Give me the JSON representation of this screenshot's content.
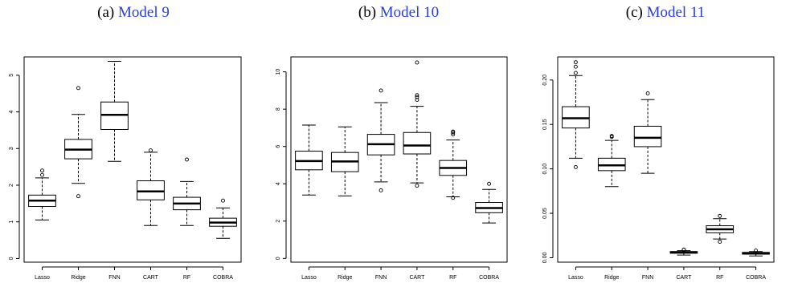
{
  "captions": [
    {
      "prefix": "(a) ",
      "link": "Model 9"
    },
    {
      "prefix": "(b) ",
      "link": "Model 10"
    },
    {
      "prefix": "(c) ",
      "link": "Model 11"
    }
  ],
  "chart_data": [
    {
      "type": "boxplot",
      "title": "Model 9",
      "categories": [
        "Lasso",
        "Ridge",
        "FNN",
        "CART",
        "RF",
        "COBRA"
      ],
      "ylim": [
        -0.1,
        5.5
      ],
      "yticks": [
        0,
        1,
        2,
        3,
        4,
        5
      ],
      "ytick_labels": [
        "0",
        "1",
        "2",
        "3",
        "4",
        "5"
      ],
      "boxes": [
        {
          "min": 1.05,
          "q1": 1.42,
          "median": 1.58,
          "q3": 1.73,
          "max": 2.2,
          "outliers": [
            2.28,
            2.4
          ]
        },
        {
          "min": 2.05,
          "q1": 2.72,
          "median": 2.97,
          "q3": 3.25,
          "max": 3.93,
          "outliers": [
            4.65,
            1.7
          ]
        },
        {
          "min": 2.65,
          "q1": 3.52,
          "median": 3.92,
          "q3": 4.27,
          "max": 5.38,
          "outliers": []
        },
        {
          "min": 0.9,
          "q1": 1.6,
          "median": 1.83,
          "q3": 2.12,
          "max": 2.9,
          "outliers": [
            2.95
          ]
        },
        {
          "min": 0.9,
          "q1": 1.33,
          "median": 1.5,
          "q3": 1.67,
          "max": 2.1,
          "outliers": [
            2.7
          ]
        },
        {
          "min": 0.55,
          "q1": 0.88,
          "median": 0.98,
          "q3": 1.1,
          "max": 1.38,
          "outliers": [
            1.58
          ]
        }
      ]
    },
    {
      "type": "boxplot",
      "title": "Model 10",
      "categories": [
        "Lasso",
        "Ridge",
        "FNN",
        "CART",
        "RF",
        "COBRA"
      ],
      "ylim": [
        -0.2,
        10.8
      ],
      "yticks": [
        0,
        2,
        4,
        6,
        8,
        10
      ],
      "ytick_labels": [
        "0",
        "2",
        "4",
        "6",
        "8",
        "10"
      ],
      "boxes": [
        {
          "min": 3.4,
          "q1": 4.75,
          "median": 5.22,
          "q3": 5.75,
          "max": 7.15,
          "outliers": []
        },
        {
          "min": 3.35,
          "q1": 4.65,
          "median": 5.2,
          "q3": 5.68,
          "max": 7.05,
          "outliers": []
        },
        {
          "min": 4.1,
          "q1": 5.55,
          "median": 6.12,
          "q3": 6.65,
          "max": 8.35,
          "outliers": [
            9.0,
            3.65
          ]
        },
        {
          "min": 4.05,
          "q1": 5.6,
          "median": 6.05,
          "q3": 6.75,
          "max": 8.15,
          "outliers": [
            8.5,
            8.65,
            8.75,
            10.5,
            3.9
          ]
        },
        {
          "min": 3.3,
          "q1": 4.45,
          "median": 4.85,
          "q3": 5.25,
          "max": 6.35,
          "outliers": [
            6.65,
            6.75,
            6.8,
            3.25
          ]
        },
        {
          "min": 1.9,
          "q1": 2.45,
          "median": 2.7,
          "q3": 3.0,
          "max": 3.7,
          "outliers": [
            4.0
          ]
        }
      ]
    },
    {
      "type": "boxplot",
      "title": "Model 11",
      "categories": [
        "Lasso",
        "Ridge",
        "FNN",
        "CART",
        "RF",
        "COBRA"
      ],
      "ylim": [
        -0.005,
        0.226
      ],
      "yticks": [
        0.0,
        0.05,
        0.1,
        0.15,
        0.2
      ],
      "ytick_labels": [
        "0.00",
        "0.05",
        "0.10",
        "0.15",
        "0.20"
      ],
      "boxes": [
        {
          "min": 0.112,
          "q1": 0.146,
          "median": 0.157,
          "q3": 0.17,
          "max": 0.205,
          "outliers": [
            0.208,
            0.215,
            0.22,
            0.102
          ]
        },
        {
          "min": 0.08,
          "q1": 0.098,
          "median": 0.104,
          "q3": 0.112,
          "max": 0.132,
          "outliers": [
            0.136,
            0.137
          ]
        },
        {
          "min": 0.095,
          "q1": 0.125,
          "median": 0.135,
          "q3": 0.148,
          "max": 0.178,
          "outliers": [
            0.185
          ]
        },
        {
          "min": 0.003,
          "q1": 0.005,
          "median": 0.006,
          "q3": 0.007,
          "max": 0.008,
          "outliers": [
            0.009,
            0.009
          ]
        },
        {
          "min": 0.021,
          "q1": 0.028,
          "median": 0.032,
          "q3": 0.036,
          "max": 0.044,
          "outliers": [
            0.047,
            0.018
          ]
        },
        {
          "min": 0.002,
          "q1": 0.004,
          "median": 0.005,
          "q3": 0.006,
          "max": 0.007,
          "outliers": [
            0.008
          ]
        }
      ]
    }
  ]
}
